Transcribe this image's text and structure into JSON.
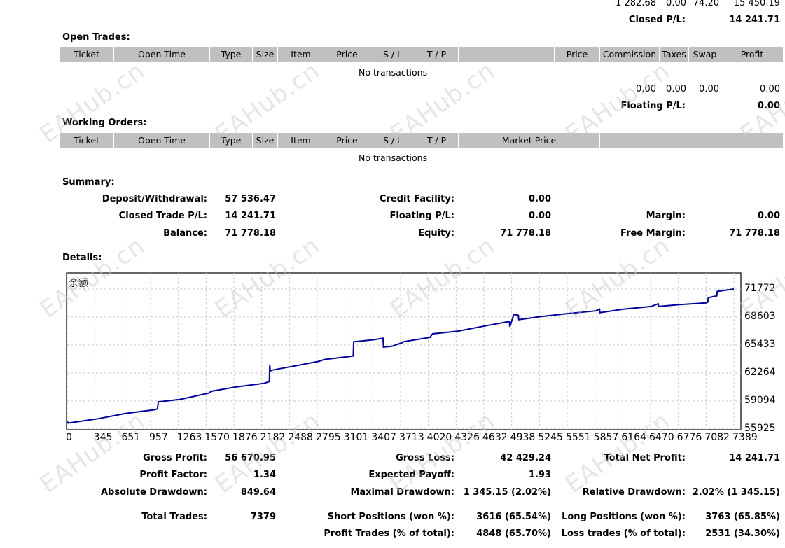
{
  "top_row": {
    "v1": "-1 282.68",
    "v2": "0.00",
    "v3": "74.20",
    "v4": "15 450.19"
  },
  "closed_pl": {
    "label": "Closed P/L:",
    "value": "14 241.71"
  },
  "open_trades": {
    "title": "Open Trades:",
    "columns": [
      "Ticket",
      "Open Time",
      "Type",
      "Size",
      "Item",
      "Price",
      "S / L",
      "T / P",
      "",
      "Price",
      "Commission",
      "Taxes",
      "Swap",
      "Profit"
    ],
    "empty_text": "No transactions",
    "totals": {
      "commission": "0.00",
      "taxes": "0.00",
      "swap": "0.00",
      "profit": "0.00"
    },
    "floating_label": "Floating P/L:",
    "floating_value": "0.00"
  },
  "working_orders": {
    "title": "Working Orders:",
    "columns": [
      "Ticket",
      "Open Time",
      "Type",
      "Size",
      "Item",
      "Price",
      "S / L",
      "T / P",
      "Market Price",
      ""
    ],
    "empty_text": "No transactions"
  },
  "summary": {
    "title": "Summary:",
    "deposit": {
      "label": "Deposit/Withdrawal:",
      "value": "57 536.47"
    },
    "credit": {
      "label": "Credit Facility:",
      "value": "0.00"
    },
    "closed_trade_pl": {
      "label": "Closed Trade P/L:",
      "value": "14 241.71"
    },
    "floating_pl": {
      "label": "Floating P/L:",
      "value": "0.00"
    },
    "margin": {
      "label": "Margin:",
      "value": "0.00"
    },
    "balance": {
      "label": "Balance:",
      "value": "71 778.18"
    },
    "equity": {
      "label": "Equity:",
      "value": "71 778.18"
    },
    "free_margin": {
      "label": "Free Margin:",
      "value": "71 778.18"
    }
  },
  "details": {
    "title": "Details:",
    "gross_profit": {
      "label": "Gross Profit:",
      "value": "56 670.95"
    },
    "gross_loss": {
      "label": "Gross Loss:",
      "value": "42 429.24"
    },
    "total_net_profit": {
      "label": "Total Net Profit:",
      "value": "14 241.71"
    },
    "profit_factor": {
      "label": "Profit Factor:",
      "value": "1.34"
    },
    "expected_payoff": {
      "label": "Expected Payoff:",
      "value": "1.93"
    },
    "absolute_drawdown": {
      "label": "Absolute Drawdown:",
      "value": "849.64"
    },
    "maximal_drawdown": {
      "label": "Maximal Drawdown:",
      "value": "1 345.15 (2.02%)"
    },
    "relative_drawdown": {
      "label": "Relative Drawdown:",
      "value": "2.02% (1 345.15)"
    },
    "total_trades": {
      "label": "Total Trades:",
      "value": "7379"
    },
    "short_positions": {
      "label": "Short Positions (won %):",
      "value": "3616 (65.54%)"
    },
    "long_positions": {
      "label": "Long Positions (won %):",
      "value": "3763 (65.85%)"
    },
    "profit_trades": {
      "label": "Profit Trades (% of total):",
      "value": "4848 (65.70%)"
    },
    "loss_trades": {
      "label": "Loss trades (% of total):",
      "value": "2531 (34.30%)"
    }
  },
  "watermark": "EAHub.cn",
  "chart_data": {
    "type": "line",
    "title": "余额",
    "line_color": "#00009c",
    "grid": true,
    "x_ticks": [
      "0",
      "345",
      "651",
      "957",
      "1263",
      "1570",
      "1876",
      "2182",
      "2488",
      "2795",
      "3101",
      "3407",
      "3713",
      "4020",
      "4326",
      "4632",
      "4938",
      "5245",
      "5551",
      "5857",
      "6164",
      "6470",
      "6776",
      "7082",
      "7389"
    ],
    "y_ticks": [
      "71772",
      "68603",
      "65433",
      "62264",
      "59094",
      "55925"
    ],
    "xlim": [
      0,
      7389
    ],
    "ylim": [
      55925,
      71772
    ],
    "x": [
      0,
      10,
      345,
      651,
      957,
      1000,
      1010,
      1263,
      1570,
      1600,
      1876,
      2182,
      2240,
      2245,
      2250,
      2270,
      2488,
      2795,
      2850,
      3101,
      3170,
      3175,
      3407,
      3500,
      3505,
      3600,
      3713,
      3720,
      4020,
      4050,
      4326,
      4632,
      4900,
      4905,
      4950,
      5000,
      5005,
      5245,
      5551,
      5857,
      5900,
      5905,
      6164,
      6470,
      6550,
      6555,
      6776,
      7082,
      7100,
      7105,
      7200,
      7205,
      7389
    ],
    "y": [
      56800,
      56600,
      57100,
      57700,
      58100,
      58200,
      59000,
      59300,
      60000,
      60200,
      60700,
      61100,
      61300,
      63200,
      62500,
      62600,
      63000,
      63600,
      63800,
      64100,
      64200,
      65800,
      66050,
      66200,
      65200,
      65300,
      65700,
      65800,
      66300,
      66700,
      67000,
      67600,
      68100,
      67500,
      68900,
      68800,
      68300,
      68650,
      69000,
      69300,
      69500,
      69100,
      69500,
      69800,
      70100,
      69800,
      70000,
      70200,
      70300,
      70800,
      71000,
      71500,
      71772
    ]
  }
}
